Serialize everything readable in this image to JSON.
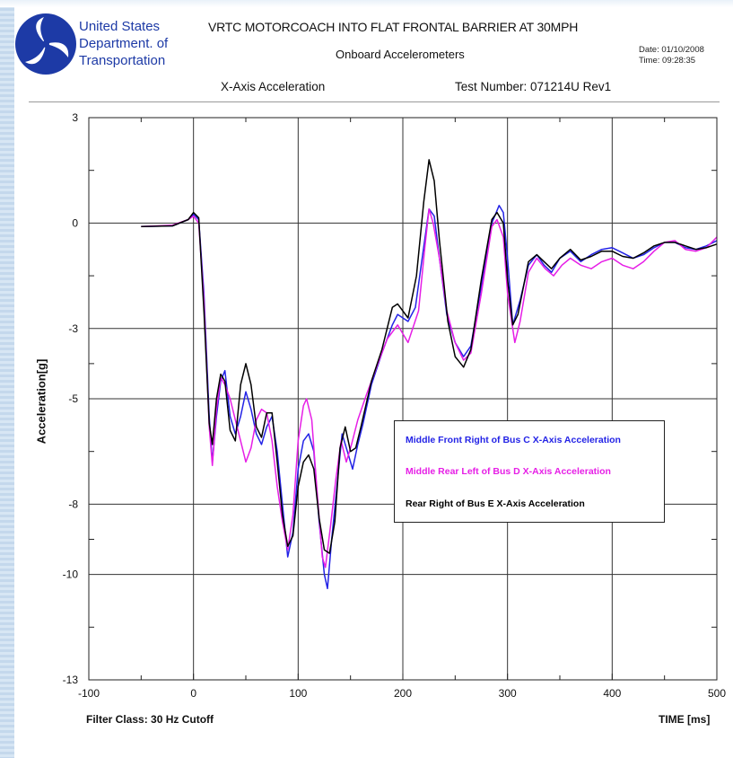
{
  "header": {
    "org_lines": [
      "United States",
      "Department. of",
      "Transportation"
    ],
    "title": "VRTC MOTORCOACH INTO FLAT FRONTAL BARRIER AT 30MPH",
    "subtitle": "Onboard Accelerometers",
    "date": "Date: 01/10/2008",
    "time": "Time: 09:28:35",
    "axis_name": "X-Axis Acceleration",
    "test_number": "Test Number: 071214U Rev1"
  },
  "footer": {
    "filter_class": "Filter Class: 30 Hz Cutoff"
  },
  "colors": {
    "brand_blue": "#1d3aa6",
    "series_blue": "#2323e6",
    "series_magenta": "#e61ee6",
    "series_black": "#000000"
  },
  "chart_data": {
    "type": "line",
    "title": "",
    "xlabel": "TIME [ms]",
    "ylabel": "Acceleration[g]",
    "xlim": [
      -100,
      500
    ],
    "ylim": [
      -13,
      3
    ],
    "x_ticks": [
      -100,
      0,
      100,
      200,
      300,
      400,
      500
    ],
    "y_ticks": [
      -13,
      -10,
      -8,
      -5,
      -3,
      0,
      3
    ],
    "grid": true,
    "legend_position": "lower-right",
    "series": [
      {
        "name": "Middle Front Right of Bus C X-Axis Acceleration",
        "color": "#2323e6",
        "points": [
          [
            -50,
            -0.1
          ],
          [
            -20,
            -0.08
          ],
          [
            -5,
            0.1
          ],
          [
            0,
            0.25
          ],
          [
            5,
            0.1
          ],
          [
            10,
            -2
          ],
          [
            15,
            -5.5
          ],
          [
            18,
            -6.8
          ],
          [
            22,
            -5.5
          ],
          [
            26,
            -4.5
          ],
          [
            30,
            -4.2
          ],
          [
            35,
            -5.5
          ],
          [
            40,
            -6
          ],
          [
            45,
            -5.5
          ],
          [
            50,
            -4.8
          ],
          [
            55,
            -5.3
          ],
          [
            60,
            -6
          ],
          [
            65,
            -6.3
          ],
          [
            70,
            -5.8
          ],
          [
            75,
            -5.5
          ],
          [
            80,
            -6.5
          ],
          [
            85,
            -8
          ],
          [
            90,
            -9.5
          ],
          [
            95,
            -8.8
          ],
          [
            100,
            -7
          ],
          [
            105,
            -6.2
          ],
          [
            110,
            -6
          ],
          [
            115,
            -6.5
          ],
          [
            120,
            -8.5
          ],
          [
            125,
            -10
          ],
          [
            128,
            -10.4
          ],
          [
            132,
            -9
          ],
          [
            137,
            -7.5
          ],
          [
            142,
            -6
          ],
          [
            147,
            -6.5
          ],
          [
            152,
            -7
          ],
          [
            157,
            -6.3
          ],
          [
            162,
            -5.7
          ],
          [
            170,
            -4.6
          ],
          [
            180,
            -3.7
          ],
          [
            190,
            -2.9
          ],
          [
            195,
            -2.6
          ],
          [
            205,
            -2.8
          ],
          [
            212,
            -2.4
          ],
          [
            218,
            -1.1
          ],
          [
            225,
            0.4
          ],
          [
            230,
            0.2
          ],
          [
            235,
            -1
          ],
          [
            242,
            -2.6
          ],
          [
            250,
            -3.4
          ],
          [
            258,
            -3.8
          ],
          [
            265,
            -3.5
          ],
          [
            275,
            -1.8
          ],
          [
            285,
            0
          ],
          [
            292,
            0.5
          ],
          [
            296,
            0.3
          ],
          [
            300,
            -1
          ],
          [
            305,
            -2.9
          ],
          [
            312,
            -2.2
          ],
          [
            320,
            -1.2
          ],
          [
            328,
            -0.9
          ],
          [
            335,
            -1.2
          ],
          [
            342,
            -1.4
          ],
          [
            350,
            -1
          ],
          [
            360,
            -0.8
          ],
          [
            370,
            -1.1
          ],
          [
            380,
            -0.9
          ],
          [
            390,
            -0.75
          ],
          [
            400,
            -0.7
          ],
          [
            410,
            -0.85
          ],
          [
            420,
            -1
          ],
          [
            430,
            -0.9
          ],
          [
            440,
            -0.7
          ],
          [
            450,
            -0.55
          ],
          [
            460,
            -0.55
          ],
          [
            470,
            -0.7
          ],
          [
            480,
            -0.75
          ],
          [
            490,
            -0.65
          ],
          [
            500,
            -0.5
          ]
        ]
      },
      {
        "name": "Middle Rear Left of Bus D X-Axis Acceleration",
        "color": "#e61ee6",
        "points": [
          [
            -50,
            -0.1
          ],
          [
            -20,
            -0.06
          ],
          [
            -5,
            0.1
          ],
          [
            0,
            0.2
          ],
          [
            5,
            0
          ],
          [
            10,
            -2.2
          ],
          [
            15,
            -5.8
          ],
          [
            18,
            -6.9
          ],
          [
            22,
            -5.3
          ],
          [
            26,
            -4.4
          ],
          [
            30,
            -4.6
          ],
          [
            35,
            -5
          ],
          [
            40,
            -5.6
          ],
          [
            45,
            -6.2
          ],
          [
            50,
            -6.8
          ],
          [
            55,
            -6.4
          ],
          [
            60,
            -5.6
          ],
          [
            65,
            -5.3
          ],
          [
            70,
            -5.4
          ],
          [
            75,
            -6.2
          ],
          [
            80,
            -7.5
          ],
          [
            85,
            -8.5
          ],
          [
            90,
            -9.3
          ],
          [
            95,
            -8.3
          ],
          [
            100,
            -6.2
          ],
          [
            105,
            -5.2
          ],
          [
            108,
            -5
          ],
          [
            113,
            -5.6
          ],
          [
            118,
            -7.6
          ],
          [
            123,
            -9.5
          ],
          [
            126,
            -9.8
          ],
          [
            131,
            -8.6
          ],
          [
            136,
            -7.3
          ],
          [
            141,
            -6.2
          ],
          [
            146,
            -6.8
          ],
          [
            151,
            -6.3
          ],
          [
            157,
            -5.6
          ],
          [
            165,
            -4.9
          ],
          [
            175,
            -4.1
          ],
          [
            185,
            -3.3
          ],
          [
            195,
            -2.9
          ],
          [
            205,
            -3.4
          ],
          [
            215,
            -2.5
          ],
          [
            221,
            -0.7
          ],
          [
            225,
            0.4
          ],
          [
            229,
            0
          ],
          [
            235,
            -1
          ],
          [
            242,
            -2.5
          ],
          [
            250,
            -3.4
          ],
          [
            258,
            -3.9
          ],
          [
            265,
            -3.7
          ],
          [
            275,
            -2
          ],
          [
            285,
            -0.1
          ],
          [
            290,
            0.1
          ],
          [
            296,
            -0.4
          ],
          [
            300,
            -2
          ],
          [
            307,
            -3.4
          ],
          [
            312,
            -2.8
          ],
          [
            320,
            -1.4
          ],
          [
            328,
            -1
          ],
          [
            336,
            -1.3
          ],
          [
            344,
            -1.5
          ],
          [
            352,
            -1.2
          ],
          [
            360,
            -1
          ],
          [
            370,
            -1.2
          ],
          [
            380,
            -1.3
          ],
          [
            390,
            -1.1
          ],
          [
            400,
            -1
          ],
          [
            410,
            -1.2
          ],
          [
            420,
            -1.3
          ],
          [
            430,
            -1.1
          ],
          [
            440,
            -0.8
          ],
          [
            450,
            -0.55
          ],
          [
            460,
            -0.5
          ],
          [
            470,
            -0.75
          ],
          [
            480,
            -0.8
          ],
          [
            490,
            -0.7
          ],
          [
            500,
            -0.4
          ]
        ]
      },
      {
        "name": "Rear Right of Bus E X-Axis Acceleration",
        "color": "#000000",
        "points": [
          [
            -50,
            -0.1
          ],
          [
            -20,
            -0.08
          ],
          [
            -5,
            0.1
          ],
          [
            0,
            0.3
          ],
          [
            5,
            0.15
          ],
          [
            10,
            -2.5
          ],
          [
            15,
            -5.7
          ],
          [
            18,
            -6.3
          ],
          [
            22,
            -5
          ],
          [
            26,
            -4.3
          ],
          [
            30,
            -4.5
          ],
          [
            35,
            -5.9
          ],
          [
            40,
            -6.2
          ],
          [
            45,
            -4.6
          ],
          [
            50,
            -4
          ],
          [
            55,
            -4.6
          ],
          [
            60,
            -5.8
          ],
          [
            65,
            -6.1
          ],
          [
            70,
            -5.4
          ],
          [
            75,
            -5.4
          ],
          [
            80,
            -6.8
          ],
          [
            85,
            -8.3
          ],
          [
            90,
            -9.2
          ],
          [
            95,
            -8.9
          ],
          [
            100,
            -7.5
          ],
          [
            105,
            -6.8
          ],
          [
            110,
            -6.6
          ],
          [
            115,
            -7
          ],
          [
            120,
            -8.4
          ],
          [
            125,
            -9.3
          ],
          [
            130,
            -9.4
          ],
          [
            135,
            -8.5
          ],
          [
            140,
            -6.4
          ],
          [
            145,
            -5.8
          ],
          [
            150,
            -6.5
          ],
          [
            155,
            -6.4
          ],
          [
            160,
            -5.8
          ],
          [
            170,
            -4.5
          ],
          [
            180,
            -3.6
          ],
          [
            190,
            -2.4
          ],
          [
            195,
            -2.3
          ],
          [
            205,
            -2.7
          ],
          [
            213,
            -1.5
          ],
          [
            220,
            0.6
          ],
          [
            225,
            1.8
          ],
          [
            230,
            1.2
          ],
          [
            235,
            -0.5
          ],
          [
            243,
            -2.8
          ],
          [
            250,
            -3.8
          ],
          [
            258,
            -4.1
          ],
          [
            265,
            -3.6
          ],
          [
            275,
            -1.6
          ],
          [
            285,
            0.1
          ],
          [
            290,
            0.3
          ],
          [
            296,
            0
          ],
          [
            300,
            -1.6
          ],
          [
            305,
            -2.9
          ],
          [
            310,
            -2.6
          ],
          [
            320,
            -1.1
          ],
          [
            328,
            -0.9
          ],
          [
            335,
            -1.1
          ],
          [
            342,
            -1.3
          ],
          [
            350,
            -1
          ],
          [
            360,
            -0.75
          ],
          [
            370,
            -1.05
          ],
          [
            380,
            -0.95
          ],
          [
            390,
            -0.8
          ],
          [
            400,
            -0.8
          ],
          [
            410,
            -0.95
          ],
          [
            420,
            -1
          ],
          [
            430,
            -0.85
          ],
          [
            440,
            -0.65
          ],
          [
            450,
            -0.55
          ],
          [
            460,
            -0.55
          ],
          [
            470,
            -0.65
          ],
          [
            480,
            -0.75
          ],
          [
            490,
            -0.7
          ],
          [
            500,
            -0.6
          ]
        ]
      }
    ]
  }
}
